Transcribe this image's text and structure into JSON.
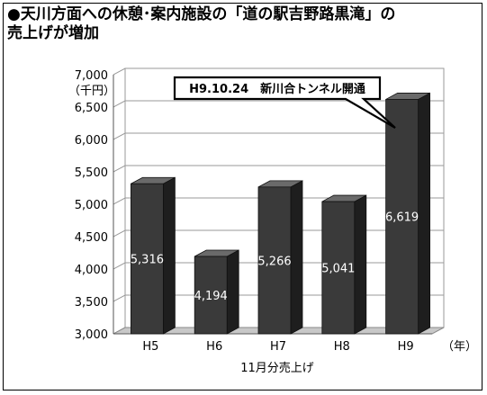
{
  "title": {
    "line1": "●天川方面への休憩･案内施設の「道の駅吉野路黒滝」の",
    "line2": "売上げが増加"
  },
  "chart_data": {
    "type": "bar",
    "categories": [
      "H5",
      "H6",
      "H7",
      "H8",
      "H9"
    ],
    "values": [
      5316,
      4194,
      5266,
      5041,
      6619
    ],
    "value_labels": [
      "5,316",
      "4,194",
      "5,266",
      "5,041",
      "6,619"
    ],
    "y_ticks": [
      "3,000",
      "3,500",
      "4,000",
      "4,500",
      "5,000",
      "5,500",
      "6,000",
      "6,500",
      "7,000"
    ],
    "ylim": [
      3000,
      7000
    ],
    "y_unit": "（千円）",
    "x_unit": "（年）",
    "xlabel": "11月分売上げ",
    "annotation": "H9.10.24　新川合トンネル開通",
    "grid": true,
    "colors": {
      "bar_front": "#3a3a3a",
      "bar_side": "#1e1e1e",
      "bar_top": "#6a6a6a",
      "floor": "#c8c8c8"
    }
  }
}
